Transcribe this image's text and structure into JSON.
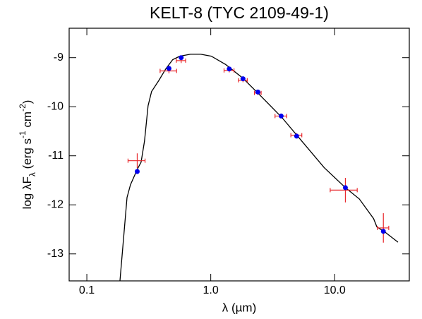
{
  "chart_data": {
    "type": "sed",
    "title": "KELT-8 (TYC 2109-49-1)",
    "xlabel": "λ (µm)",
    "ylabel": [
      {
        "text": "log λF",
        "script": "base"
      },
      {
        "text": "λ",
        "script": "sub"
      },
      {
        "text": " (erg s",
        "script": "base"
      },
      {
        "text": "-1",
        "script": "sup"
      },
      {
        "text": " cm",
        "script": "base"
      },
      {
        "text": "-2",
        "script": "sup"
      },
      {
        "text": ")",
        "script": "base"
      }
    ],
    "xscale": "log",
    "xlim": [
      0.072,
      40
    ],
    "ylim": [
      -13.55,
      -8.4
    ],
    "xticks": [
      0.1,
      {
        "value": 1,
        "label": "1.0"
      },
      {
        "value": 10,
        "label": "10.0"
      }
    ],
    "yticks": [
      -9,
      -10,
      -11,
      -12,
      -13
    ],
    "series": [
      {
        "style": "line",
        "color": "#000000",
        "x": [
          0.185,
          0.211,
          0.225,
          0.256,
          0.274,
          0.292,
          0.312,
          0.333,
          0.38,
          0.433,
          0.493,
          0.562,
          0.684,
          0.832,
          1.01,
          1.32,
          1.82,
          2.53,
          3.75,
          5.55,
          8.22,
          12.2,
          15.8,
          20.6,
          21.9,
          25.0,
          32.4
        ],
        "values": [
          -13.55,
          -11.85,
          -11.59,
          -11.27,
          -11.13,
          -10.7,
          -9.98,
          -9.69,
          -9.47,
          -9.23,
          -9.04,
          -8.97,
          -8.93,
          -8.93,
          -8.97,
          -9.14,
          -9.42,
          -9.78,
          -10.22,
          -10.73,
          -11.24,
          -11.65,
          -11.88,
          -12.28,
          -12.45,
          -12.54,
          -12.76
        ]
      },
      {
        "style": "errorbar",
        "color": "#e8282c",
        "x": [
          0.255,
          0.46,
          0.577,
          1.41,
          1.82,
          2.4,
          3.7,
          4.93,
          12.2,
          24.7
        ],
        "xerr": [
          0.04,
          0.07,
          0.05,
          0.13,
          0.15,
          0.15,
          0.4,
          0.5,
          3,
          2.6
        ],
        "values": [
          -11.1,
          -9.27,
          -9.06,
          -9.26,
          -9.46,
          -9.72,
          -10.19,
          -10.58,
          -11.7,
          -12.47
        ],
        "yerr": [
          0.15,
          0.05,
          0.05,
          0.04,
          0.04,
          0.04,
          0.04,
          0.04,
          0.25,
          0.3
        ]
      },
      {
        "style": "marker",
        "color": "#0000ee",
        "x": [
          0.255,
          0.46,
          0.577,
          1.41,
          1.82,
          2.4,
          3.7,
          4.93,
          12.2,
          24.7
        ],
        "values": [
          -11.32,
          -9.22,
          -9.0,
          -9.23,
          -9.43,
          -9.7,
          -10.19,
          -10.6,
          -11.65,
          -12.54
        ]
      }
    ]
  }
}
